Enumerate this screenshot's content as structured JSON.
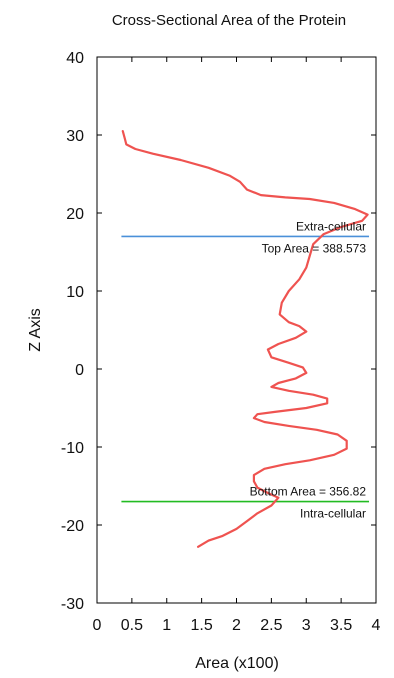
{
  "chart_data": {
    "type": "line",
    "title": "Cross-Sectional Area of the Protein",
    "xlabel": "Area (x100)",
    "ylabel": "Z Axis",
    "xlim": [
      0,
      4
    ],
    "ylim": [
      -30,
      40
    ],
    "x_ticks": [
      "0",
      "0.5",
      "1",
      "1.5",
      "2",
      "2.5",
      "3",
      "3.5",
      "4"
    ],
    "y_ticks": [
      "40",
      "30",
      "20",
      "10",
      "0",
      "-10",
      "-20",
      "-30"
    ],
    "grid": false,
    "colors": {
      "profile": "#ef5350",
      "top_line": "#4a90d9",
      "bottom_line": "#22bb22"
    },
    "series": [
      {
        "points": [
          [
            0.37,
            30.5
          ],
          [
            0.4,
            29.5
          ],
          [
            0.42,
            28.8
          ],
          [
            0.55,
            28.2
          ],
          [
            0.8,
            27.6
          ],
          [
            1.2,
            26.8
          ],
          [
            1.6,
            25.8
          ],
          [
            1.9,
            24.8
          ],
          [
            2.05,
            24.0
          ],
          [
            2.15,
            23.0
          ],
          [
            2.35,
            22.3
          ],
          [
            2.7,
            22.0
          ],
          [
            3.05,
            21.8
          ],
          [
            3.4,
            21.3
          ],
          [
            3.7,
            20.5
          ],
          [
            3.88,
            19.8
          ],
          [
            3.8,
            19.0
          ],
          [
            3.5,
            18.2
          ],
          [
            3.25,
            17.3
          ],
          [
            3.1,
            16.0
          ],
          [
            3.05,
            14.5
          ],
          [
            3.0,
            13.0
          ],
          [
            2.9,
            11.5
          ],
          [
            2.75,
            10.0
          ],
          [
            2.65,
            8.5
          ],
          [
            2.62,
            7.0
          ],
          [
            2.75,
            6.0
          ],
          [
            2.9,
            5.5
          ],
          [
            3.0,
            4.8
          ],
          [
            2.85,
            4.0
          ],
          [
            2.6,
            3.2
          ],
          [
            2.45,
            2.5
          ],
          [
            2.5,
            1.5
          ],
          [
            2.75,
            0.8
          ],
          [
            2.95,
            0.2
          ],
          [
            3.0,
            -0.5
          ],
          [
            2.85,
            -1.2
          ],
          [
            2.6,
            -1.8
          ],
          [
            2.5,
            -2.3
          ],
          [
            2.75,
            -2.8
          ],
          [
            3.1,
            -3.3
          ],
          [
            3.3,
            -3.8
          ],
          [
            3.3,
            -4.4
          ],
          [
            3.0,
            -5.0
          ],
          [
            2.55,
            -5.5
          ],
          [
            2.3,
            -5.8
          ],
          [
            2.25,
            -6.3
          ],
          [
            2.4,
            -6.8
          ],
          [
            2.75,
            -7.3
          ],
          [
            3.15,
            -7.8
          ],
          [
            3.45,
            -8.4
          ],
          [
            3.58,
            -9.2
          ],
          [
            3.58,
            -10.2
          ],
          [
            3.4,
            -11.0
          ],
          [
            3.05,
            -11.7
          ],
          [
            2.7,
            -12.2
          ],
          [
            2.4,
            -12.8
          ],
          [
            2.25,
            -13.6
          ],
          [
            2.25,
            -14.4
          ],
          [
            2.3,
            -15.2
          ],
          [
            2.45,
            -15.9
          ],
          [
            2.6,
            -16.5
          ],
          [
            2.5,
            -17.5
          ],
          [
            2.3,
            -18.5
          ],
          [
            2.15,
            -19.5
          ],
          [
            2.0,
            -20.5
          ],
          [
            1.8,
            -21.4
          ],
          [
            1.6,
            -22.0
          ],
          [
            1.45,
            -22.8
          ]
        ]
      }
    ],
    "reference_lines": [
      {
        "y": 17,
        "x_from": 0.35,
        "x_to": 3.9,
        "color_key": "top_line",
        "label_above": "Extra-cellular",
        "label_below": "Top Area = 388.573"
      },
      {
        "y": -17,
        "x_from": 0.35,
        "x_to": 3.9,
        "color_key": "bottom_line",
        "label_above": "Bottom Area = 356.82",
        "label_below": "Intra-cellular"
      }
    ]
  }
}
